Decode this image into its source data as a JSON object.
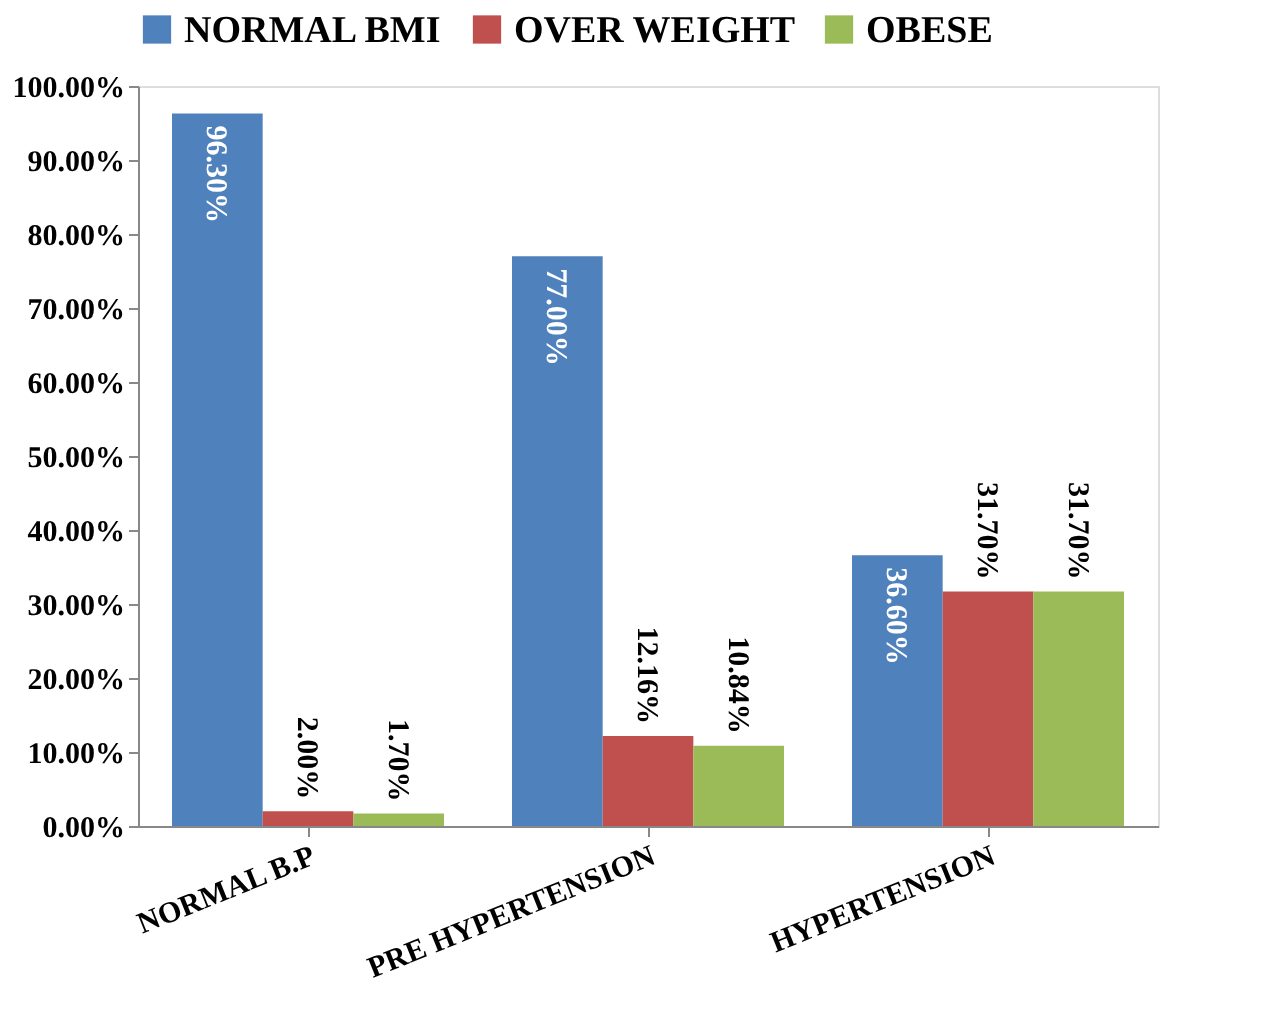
{
  "chart_data": {
    "type": "bar",
    "categories": [
      "NORMAL B.P",
      "PRE HYPERTENSION",
      "HYPERTENSION"
    ],
    "series": [
      {
        "name": "NORMAL BMI",
        "color": "#4f81bd",
        "values": [
          96.3,
          77.0,
          36.6
        ],
        "value_labels": [
          "96.30%",
          "77.00%",
          "36.60%"
        ]
      },
      {
        "name": "OVER WEIGHT",
        "color": "#c0504d",
        "values": [
          2.0,
          12.16,
          31.7
        ],
        "value_labels": [
          "2.00%",
          "12.16%",
          "31.70%"
        ]
      },
      {
        "name": "OBESE",
        "color": "#9bbb59",
        "values": [
          1.7,
          10.84,
          31.7
        ],
        "value_labels": [
          "1.70%",
          "10.84%",
          "31.70%"
        ]
      }
    ],
    "ylim": [
      0,
      100
    ],
    "yticks": [
      {
        "value": 0,
        "label": "0.00%"
      },
      {
        "value": 10,
        "label": "10.00%"
      },
      {
        "value": 20,
        "label": "20.00%"
      },
      {
        "value": 30,
        "label": "30.00%"
      },
      {
        "value": 40,
        "label": "40.00%"
      },
      {
        "value": 50,
        "label": "50.00%"
      },
      {
        "value": 60,
        "label": "60.00%"
      },
      {
        "value": 70,
        "label": "70.00%"
      },
      {
        "value": 80,
        "label": "80.00%"
      },
      {
        "value": 90,
        "label": "90.00%"
      },
      {
        "value": 100,
        "label": "100.00%"
      }
    ],
    "legend": "top",
    "grid": false
  }
}
